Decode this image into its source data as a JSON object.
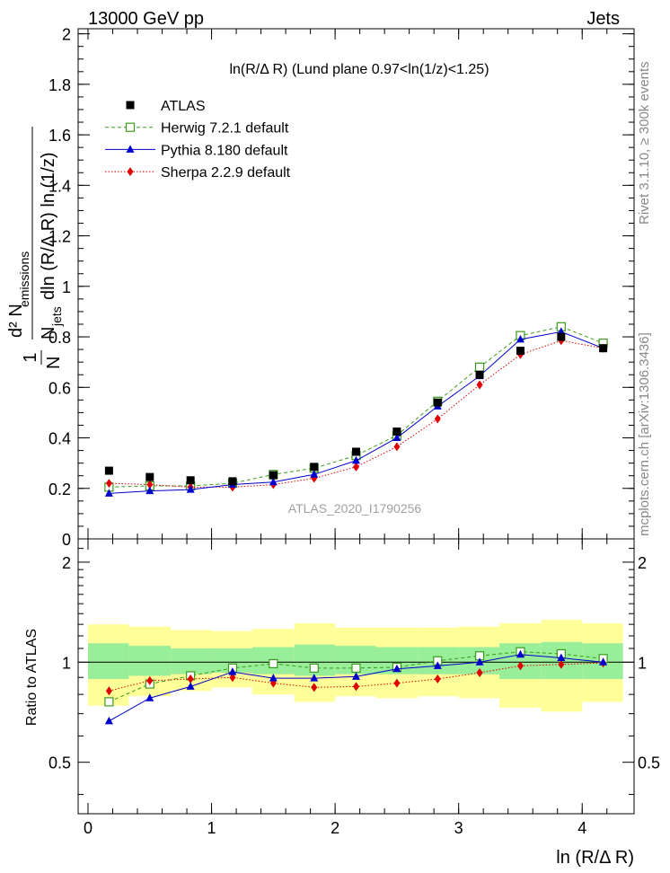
{
  "header": {
    "left": "13000 GeV pp",
    "right": "Jets",
    "side_rivet": "Rivet 3.1.10, ≥ 300k events",
    "side_mcplots": "mcplots.cern.ch [arXiv:1306.3436]",
    "watermark": "ATLAS_2020_I1790256"
  },
  "chart_data": [
    {
      "panel": "main",
      "type": "scatter",
      "title": "ln(R/Δ R) (Lund plane 0.97<ln(1/z)<1.25)",
      "ylabel_frac_num": "1",
      "ylabel_frac_den": "N",
      "ylabel_den_sub": "jets",
      "ylabel_den_rest": "dln (R/Δ R) ln (1/z)",
      "ylabel_num": "d² N",
      "ylabel_num_sub": "emissions",
      "xlim": [
        -0.08,
        4.42
      ],
      "ylim": [
        0,
        2.02
      ],
      "yticks": [
        0,
        0.2,
        0.4,
        0.6,
        0.8,
        1,
        1.2,
        1.4,
        1.6,
        1.8,
        2
      ],
      "yticklabels": [
        "0",
        "0.2",
        "0.4",
        "0.6",
        "0.8",
        "1",
        "1.2",
        "1.4",
        "1.6",
        "1.8",
        "2"
      ],
      "x": [
        0.17,
        0.5,
        0.83,
        1.17,
        1.5,
        1.83,
        2.17,
        2.5,
        2.83,
        3.17,
        3.5,
        3.83,
        4.17
      ],
      "legend": "top-left",
      "series": [
        {
          "name": "ATLAS",
          "marker": "square-filled",
          "color": "#000000",
          "values": [
            0.27,
            0.245,
            0.232,
            0.228,
            0.252,
            0.285,
            0.345,
            0.425,
            0.54,
            0.65,
            0.745,
            0.8,
            0.755
          ]
        },
        {
          "name": "Herwig 7.2.1 default",
          "marker": "square-open",
          "color": "#3a9b1c",
          "line": "dashed",
          "values": [
            0.205,
            0.21,
            0.21,
            0.22,
            0.255,
            0.28,
            0.33,
            0.41,
            0.545,
            0.68,
            0.805,
            0.84,
            0.775
          ]
        },
        {
          "name": "Pythia 8.180 default",
          "marker": "triangle",
          "color": "#0000cc",
          "line": "solid",
          "values": [
            0.18,
            0.19,
            0.195,
            0.215,
            0.225,
            0.255,
            0.31,
            0.4,
            0.525,
            0.645,
            0.79,
            0.82,
            0.755
          ]
        },
        {
          "name": "Sherpa 2.2.9 default",
          "marker": "diamond",
          "color": "#e00000",
          "line": "dotted",
          "values": [
            0.22,
            0.215,
            0.205,
            0.205,
            0.215,
            0.24,
            0.285,
            0.365,
            0.475,
            0.61,
            0.73,
            0.785,
            0.755
          ]
        }
      ]
    },
    {
      "panel": "ratio",
      "type": "scatter",
      "ylabel": "Ratio to ATLAS",
      "xlabel": "ln (R/Δ R)",
      "xlim": [
        -0.08,
        4.42
      ],
      "ylim": [
        0.35,
        2.35
      ],
      "yscale": "log",
      "yticks": [
        0.5,
        1,
        2
      ],
      "yticklabels": [
        "0.5",
        "1",
        "2"
      ],
      "xticks": [
        0,
        1,
        2,
        3,
        4
      ],
      "xticklabels": [
        "0",
        "1",
        "2",
        "3",
        "4"
      ],
      "x": [
        0.17,
        0.5,
        0.83,
        1.17,
        1.5,
        1.83,
        2.17,
        2.5,
        2.83,
        3.17,
        3.5,
        3.83,
        4.17
      ],
      "band_edges": [
        0,
        0.33,
        0.67,
        1.0,
        1.33,
        1.67,
        2.0,
        2.33,
        2.67,
        3.0,
        3.33,
        3.67,
        4.0,
        4.33
      ],
      "band_inner_low": [
        0.89,
        0.91,
        0.92,
        0.93,
        0.92,
        0.91,
        0.92,
        0.92,
        0.92,
        0.92,
        0.89,
        0.89,
        0.89
      ],
      "band_inner_high": [
        1.14,
        1.12,
        1.1,
        1.1,
        1.11,
        1.13,
        1.12,
        1.11,
        1.11,
        1.11,
        1.14,
        1.15,
        1.14
      ],
      "band_outer_low": [
        0.74,
        0.79,
        0.82,
        0.84,
        0.8,
        0.76,
        0.79,
        0.78,
        0.79,
        0.78,
        0.73,
        0.71,
        0.76
      ],
      "band_outer_high": [
        1.3,
        1.28,
        1.25,
        1.24,
        1.26,
        1.31,
        1.27,
        1.27,
        1.27,
        1.28,
        1.31,
        1.34,
        1.31
      ],
      "series": [
        {
          "name": "Herwig 7.2.1 default",
          "marker": "square-open",
          "color": "#3a9b1c",
          "line": "dashed",
          "values": [
            0.76,
            0.86,
            0.91,
            0.96,
            0.99,
            0.96,
            0.96,
            0.965,
            1.01,
            1.045,
            1.075,
            1.06,
            1.025
          ]
        },
        {
          "name": "Pythia 8.180 default",
          "marker": "triangle",
          "color": "#0000cc",
          "line": "solid",
          "values": [
            0.665,
            0.78,
            0.845,
            0.935,
            0.895,
            0.895,
            0.905,
            0.955,
            0.975,
            1.0,
            1.055,
            1.03,
            1.0
          ]
        },
        {
          "name": "Sherpa 2.2.9 default",
          "marker": "diamond",
          "color": "#e00000",
          "line": "dotted",
          "values": [
            0.82,
            0.88,
            0.89,
            0.9,
            0.865,
            0.84,
            0.845,
            0.865,
            0.89,
            0.93,
            0.975,
            0.985,
            0.995
          ]
        }
      ]
    }
  ]
}
